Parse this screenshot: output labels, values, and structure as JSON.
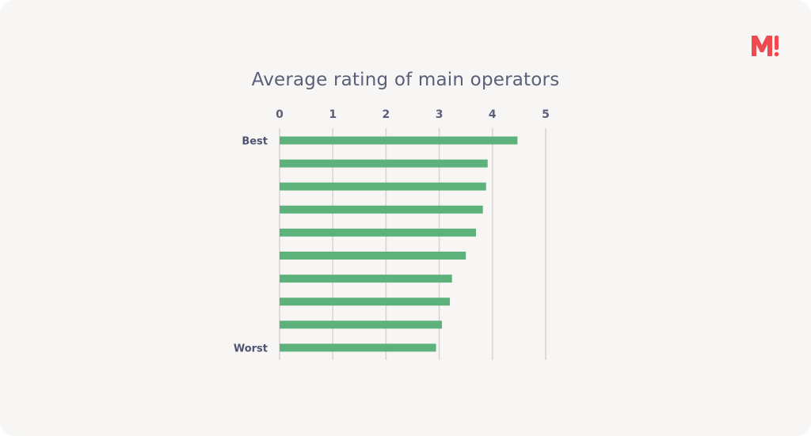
{
  "brand": {
    "logo_text": "M!",
    "logo_color": "#ef4a4f"
  },
  "colors": {
    "bar": "#5db17b",
    "gridline": "#d6d4d1",
    "text": "#5a5f7a",
    "background": "#f7f6f4"
  },
  "chart_data": {
    "type": "bar",
    "orientation": "horizontal",
    "title": "Average rating of main operators",
    "xlabel": "",
    "ylabel": "",
    "xlim": [
      0,
      5
    ],
    "x_ticks": [
      "0",
      "1",
      "2",
      "3",
      "4",
      "5"
    ],
    "x_axis_position": "top",
    "grid": "vertical",
    "legend": "none",
    "row_labels": [
      "Best",
      "",
      "",
      "",
      "",
      "",
      "",
      "",
      "",
      "Worst"
    ],
    "values": [
      4.47,
      3.91,
      3.88,
      3.82,
      3.69,
      3.5,
      3.24,
      3.2,
      3.05,
      2.94
    ]
  }
}
